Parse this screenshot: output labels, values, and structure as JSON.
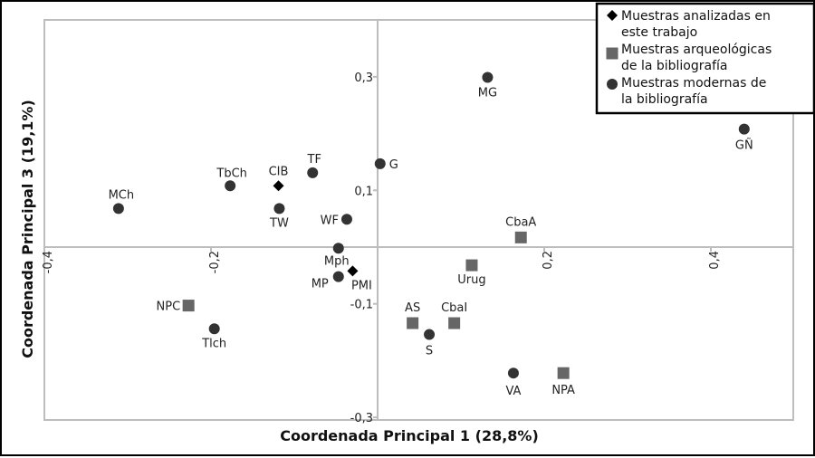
{
  "chart_data": {
    "type": "scatter",
    "xlabel": "Coordenada Principal 1 (28,8%)",
    "ylabel": "Coordenada Principal 3 (19,1%)",
    "xlim": [
      -0.4,
      0.5
    ],
    "ylim": [
      -0.3,
      0.4
    ],
    "x_ticks": [
      {
        "value": -0.4,
        "label": "-0,4"
      },
      {
        "value": -0.2,
        "label": "-0,2"
      },
      {
        "value": 0.2,
        "label": "0,2"
      },
      {
        "value": 0.4,
        "label": "0,4"
      }
    ],
    "y_ticks": [
      {
        "value": 0.3,
        "label": "0,3"
      },
      {
        "value": 0.1,
        "label": "0,1"
      },
      {
        "value": -0.1,
        "label": "-0,1"
      },
      {
        "value": -0.3,
        "label": "-0,3"
      }
    ],
    "grid": false,
    "legend_position": "top-right",
    "series": [
      {
        "name": "Muestras analizadas en este trabajo",
        "marker": "diamond",
        "color": "#000000",
        "points": [
          {
            "label": "CIB",
            "x": -0.119,
            "y": 0.108
          },
          {
            "label": "PMI",
            "x": -0.03,
            "y": -0.042
          }
        ]
      },
      {
        "name": "Muestras arqueológicas de la bibliografía",
        "marker": "square",
        "color": "#666666",
        "points": [
          {
            "label": "CbaA",
            "x": 0.172,
            "y": 0.017
          },
          {
            "label": "Urug",
            "x": 0.113,
            "y": -0.032
          },
          {
            "label": "NPC",
            "x": -0.227,
            "y": -0.103
          },
          {
            "label": "AS",
            "x": 0.042,
            "y": -0.134
          },
          {
            "label": "CbaI",
            "x": 0.092,
            "y": -0.134
          },
          {
            "label": "NPA",
            "x": 0.223,
            "y": -0.222
          }
        ]
      },
      {
        "name": "Muestras modernas de la bibliografía",
        "marker": "circle",
        "color": "#333333",
        "points": [
          {
            "label": "MG",
            "x": 0.132,
            "y": 0.299
          },
          {
            "label": "GÑ",
            "x": 0.44,
            "y": 0.208
          },
          {
            "label": "G",
            "x": 0.003,
            "y": 0.147
          },
          {
            "label": "TF",
            "x": -0.078,
            "y": 0.131
          },
          {
            "label": "TbCh",
            "x": -0.177,
            "y": 0.108
          },
          {
            "label": "MCh",
            "x": -0.311,
            "y": 0.068
          },
          {
            "label": "TW",
            "x": -0.118,
            "y": 0.068
          },
          {
            "label": "WF",
            "x": -0.037,
            "y": 0.049
          },
          {
            "label": "Mph",
            "x": -0.047,
            "y": -0.002
          },
          {
            "label": "MP",
            "x": -0.047,
            "y": -0.052
          },
          {
            "label": "Tlch",
            "x": -0.196,
            "y": -0.144
          },
          {
            "label": "S",
            "x": 0.062,
            "y": -0.154
          },
          {
            "label": "VA",
            "x": 0.163,
            "y": -0.222
          }
        ]
      }
    ],
    "legend_lines": [
      [
        "Muestras analizadas en",
        "este trabajo"
      ],
      [
        "Muestras arqueológicas",
        "de la bibliografía"
      ],
      [
        "Muestras modernas de",
        "la bibliografía"
      ]
    ]
  }
}
